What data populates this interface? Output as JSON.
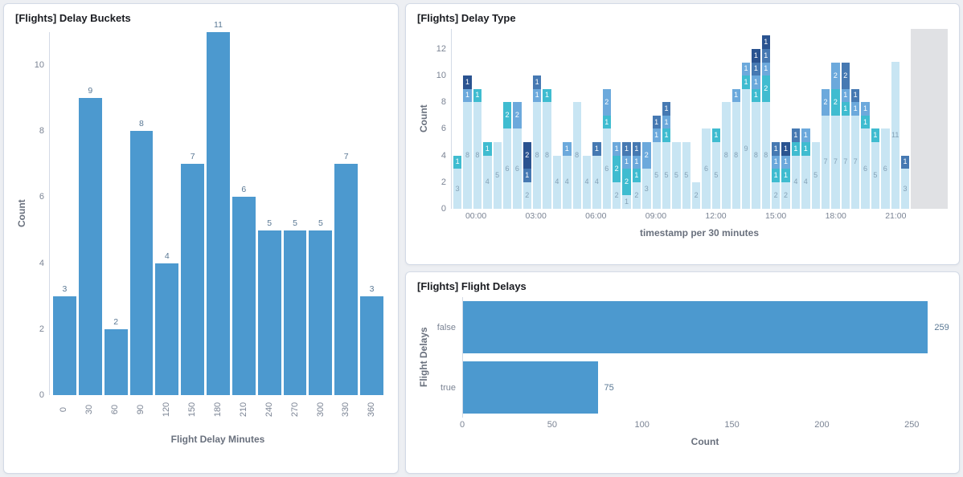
{
  "colors": {
    "bar": "#4c99cf",
    "page_bg": "#edeff3",
    "panel_border": "#d3dae6",
    "panel_title": "#1a1c21",
    "axis_title": "#69707d",
    "tick_label": "#7b8494",
    "value_label": "#5a7894",
    "partial_bucket_band": "#e0e1e4",
    "stack": {
      "pale": "#c8e5f3",
      "cyan": "#3fbcd0",
      "blue": "#6ca9dc",
      "steel": "#4679b2",
      "navy": "#2a5390"
    },
    "stack_label_pale": "#84a1b6",
    "stack_label": "#ffffff"
  },
  "chart_data": [
    {
      "type": "bar",
      "title": "[Flights] Delay Buckets",
      "categories": [
        "0",
        "30",
        "60",
        "90",
        "120",
        "150",
        "180",
        "210",
        "240",
        "270",
        "300",
        "330",
        "360"
      ],
      "values": [
        3,
        9,
        2,
        8,
        4,
        7,
        11,
        6,
        5,
        5,
        5,
        7,
        3
      ],
      "xlabel": "Flight Delay Minutes",
      "ylabel": "Count",
      "ylim": [
        0,
        11
      ],
      "yticks": [
        0,
        2,
        4,
        6,
        8,
        10
      ],
      "grid": false,
      "legend": false
    },
    {
      "type": "bar",
      "stacked": true,
      "title": "[Flights] Delay Type",
      "xlabel": "timestamp per 30 minutes",
      "ylabel": "Count",
      "ylim": [
        0,
        13.5
      ],
      "yticks": [
        0,
        2,
        4,
        6,
        8,
        10,
        12
      ],
      "grid": false,
      "legend": false,
      "xticks": [
        {
          "label": "00:00",
          "index": 2
        },
        {
          "label": "03:00",
          "index": 8
        },
        {
          "label": "06:00",
          "index": 14
        },
        {
          "label": "09:00",
          "index": 20
        },
        {
          "label": "12:00",
          "index": 26
        },
        {
          "label": "15:00",
          "index": 32
        },
        {
          "label": "18:00",
          "index": 38
        },
        {
          "label": "21:00",
          "index": 44
        }
      ],
      "series_order": [
        "pale",
        "cyan",
        "blue",
        "steel",
        "navy"
      ],
      "bars": [
        {
          "segments": [
            [
              "pale",
              3
            ],
            [
              "cyan",
              1
            ]
          ]
        },
        {
          "segments": [
            [
              "pale",
              8
            ],
            [
              "blue",
              1
            ],
            [
              "navy",
              1
            ]
          ]
        },
        {
          "segments": [
            [
              "pale",
              8
            ],
            [
              "cyan",
              1
            ]
          ]
        },
        {
          "segments": [
            [
              "pale",
              4
            ],
            [
              "cyan",
              1
            ]
          ]
        },
        {
          "segments": [
            [
              "pale",
              5
            ]
          ]
        },
        {
          "segments": [
            [
              "pale",
              6
            ],
            [
              "cyan",
              2
            ]
          ]
        },
        {
          "segments": [
            [
              "pale",
              6
            ],
            [
              "blue",
              2
            ]
          ]
        },
        {
          "segments": [
            [
              "pale",
              2
            ],
            [
              "steel",
              1
            ],
            [
              "navy",
              2
            ]
          ]
        },
        {
          "segments": [
            [
              "pale",
              8
            ],
            [
              "blue",
              1
            ],
            [
              "steel",
              1
            ]
          ]
        },
        {
          "segments": [
            [
              "pale",
              8
            ],
            [
              "cyan",
              1
            ]
          ]
        },
        {
          "segments": [
            [
              "pale",
              4
            ]
          ]
        },
        {
          "segments": [
            [
              "pale",
              4
            ],
            [
              "blue",
              1
            ]
          ]
        },
        {
          "segments": [
            [
              "pale",
              8
            ]
          ]
        },
        {
          "segments": [
            [
              "pale",
              4
            ]
          ]
        },
        {
          "segments": [
            [
              "pale",
              4
            ],
            [
              "steel",
              1
            ]
          ]
        },
        {
          "segments": [
            [
              "pale",
              6
            ],
            [
              "cyan",
              1
            ],
            [
              "blue",
              2
            ]
          ]
        },
        {
          "segments": [
            [
              "pale",
              2
            ],
            [
              "cyan",
              2
            ],
            [
              "blue",
              1
            ]
          ]
        },
        {
          "segments": [
            [
              "pale",
              1
            ],
            [
              "cyan",
              2
            ],
            [
              "blue",
              1
            ],
            [
              "steel",
              1
            ]
          ]
        },
        {
          "segments": [
            [
              "pale",
              2
            ],
            [
              "cyan",
              1
            ],
            [
              "blue",
              1
            ],
            [
              "steel",
              1
            ]
          ]
        },
        {
          "segments": [
            [
              "pale",
              3
            ],
            [
              "blue",
              2
            ]
          ]
        },
        {
          "segments": [
            [
              "pale",
              5
            ],
            [
              "blue",
              1
            ],
            [
              "steel",
              1
            ]
          ]
        },
        {
          "segments": [
            [
              "pale",
              5
            ],
            [
              "cyan",
              1
            ],
            [
              "blue",
              1
            ],
            [
              "steel",
              1
            ]
          ]
        },
        {
          "segments": [
            [
              "pale",
              5
            ]
          ]
        },
        {
          "segments": [
            [
              "pale",
              5
            ]
          ]
        },
        {
          "segments": [
            [
              "pale",
              2
            ]
          ]
        },
        {
          "segments": [
            [
              "pale",
              6
            ]
          ]
        },
        {
          "segments": [
            [
              "pale",
              5
            ],
            [
              "cyan",
              1
            ]
          ]
        },
        {
          "segments": [
            [
              "pale",
              8
            ]
          ]
        },
        {
          "segments": [
            [
              "pale",
              8
            ],
            [
              "blue",
              1
            ]
          ]
        },
        {
          "segments": [
            [
              "pale",
              9
            ],
            [
              "cyan",
              1
            ],
            [
              "blue",
              1
            ]
          ]
        },
        {
          "segments": [
            [
              "pale",
              8
            ],
            [
              "cyan",
              1
            ],
            [
              "blue",
              1
            ],
            [
              "steel",
              1
            ],
            [
              "navy",
              1
            ]
          ]
        },
        {
          "segments": [
            [
              "pale",
              8
            ],
            [
              "cyan",
              2
            ],
            [
              "blue",
              1
            ],
            [
              "steel",
              1
            ],
            [
              "navy",
              1
            ]
          ]
        },
        {
          "segments": [
            [
              "pale",
              2
            ],
            [
              "cyan",
              1
            ],
            [
              "blue",
              1
            ],
            [
              "steel",
              1
            ]
          ]
        },
        {
          "segments": [
            [
              "pale",
              2
            ],
            [
              "cyan",
              1
            ],
            [
              "blue",
              1
            ],
            [
              "navy",
              1
            ]
          ]
        },
        {
          "segments": [
            [
              "pale",
              4
            ],
            [
              "cyan",
              1
            ],
            [
              "steel",
              1
            ]
          ]
        },
        {
          "segments": [
            [
              "pale",
              4
            ],
            [
              "cyan",
              1
            ],
            [
              "blue",
              1
            ]
          ]
        },
        {
          "segments": [
            [
              "pale",
              5
            ]
          ]
        },
        {
          "segments": [
            [
              "pale",
              7
            ],
            [
              "blue",
              2
            ]
          ]
        },
        {
          "segments": [
            [
              "pale",
              7
            ],
            [
              "cyan",
              2
            ],
            [
              "blue",
              2
            ]
          ]
        },
        {
          "segments": [
            [
              "pale",
              7
            ],
            [
              "cyan",
              1
            ],
            [
              "blue",
              1
            ],
            [
              "steel",
              2
            ]
          ]
        },
        {
          "segments": [
            [
              "pale",
              7
            ],
            [
              "blue",
              1
            ],
            [
              "steel",
              1
            ]
          ]
        },
        {
          "segments": [
            [
              "pale",
              6
            ],
            [
              "cyan",
              1
            ],
            [
              "blue",
              1
            ]
          ]
        },
        {
          "segments": [
            [
              "pale",
              5
            ],
            [
              "cyan",
              1
            ]
          ]
        },
        {
          "segments": [
            [
              "pale",
              6
            ]
          ]
        },
        {
          "segments": [
            [
              "pale",
              11
            ]
          ]
        },
        {
          "segments": [
            [
              "pale",
              3
            ],
            [
              "steel",
              1
            ]
          ]
        }
      ]
    },
    {
      "type": "bar",
      "orientation": "horizontal",
      "title": "[Flights] Flight Delays",
      "categories": [
        "false",
        "true"
      ],
      "values": [
        259,
        75
      ],
      "xlabel": "Count",
      "ylabel": "Flight Delays",
      "xlim": [
        0,
        270
      ],
      "xticks": [
        0,
        50,
        100,
        150,
        200,
        250
      ],
      "grid": false,
      "legend": false
    }
  ]
}
